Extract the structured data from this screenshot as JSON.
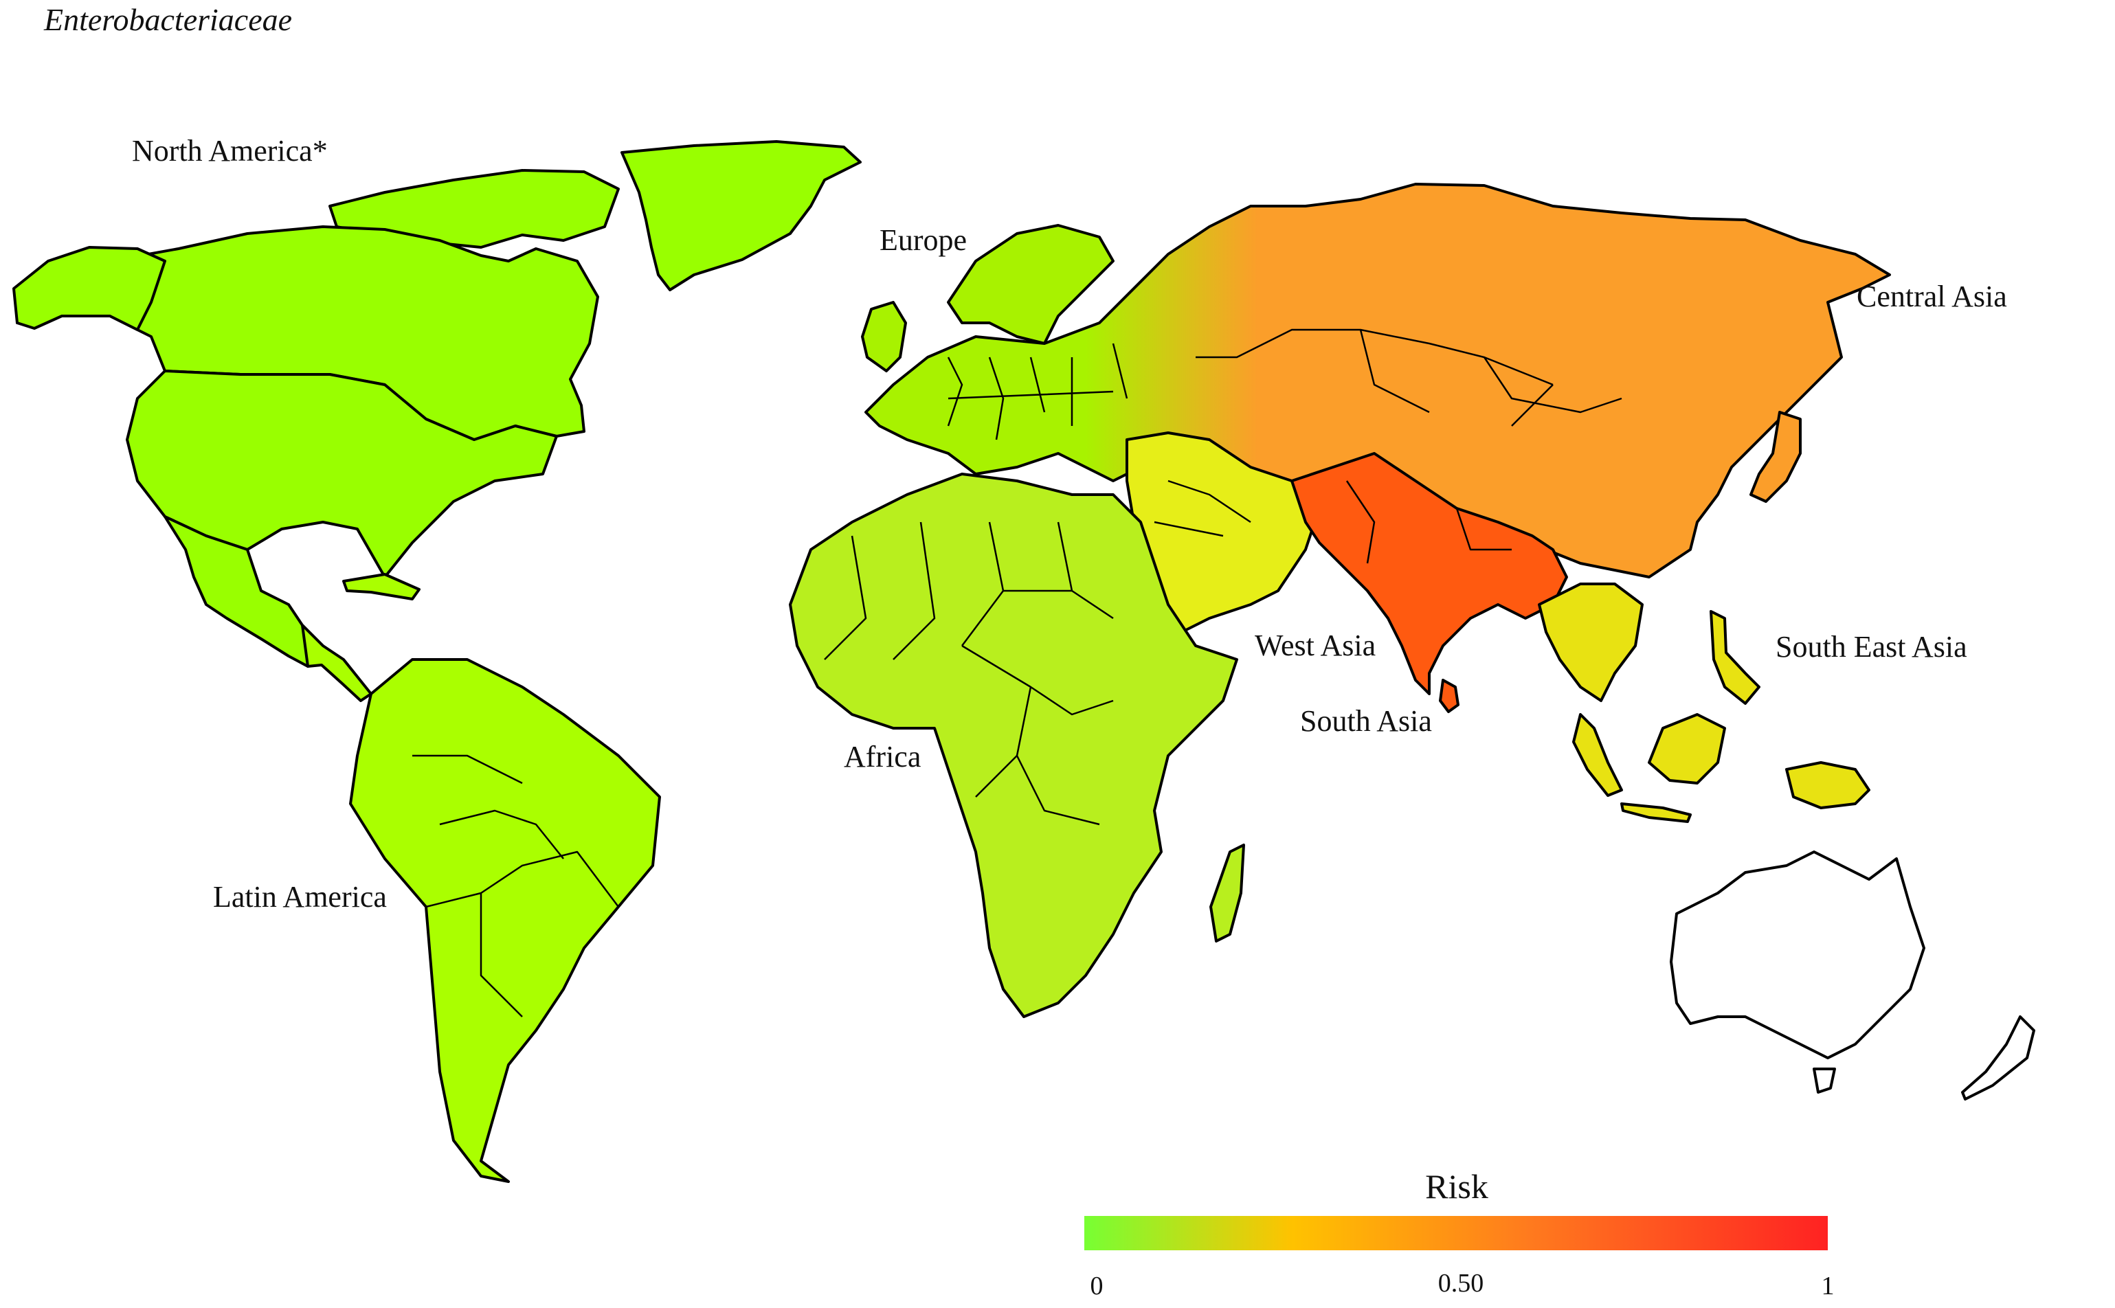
{
  "title": "Enterobacteriaceae",
  "regions": [
    {
      "id": "north-america",
      "label": "North America*",
      "risk": 0.05,
      "color": "#99ff00"
    },
    {
      "id": "latin-america",
      "label": "Latin America",
      "risk": 0.1,
      "color": "#aaff00"
    },
    {
      "id": "europe",
      "label": "Europe",
      "risk": 0.1,
      "color": "#a8f200"
    },
    {
      "id": "africa",
      "label": "Africa",
      "risk": 0.15,
      "color": "#b8ef1e"
    },
    {
      "id": "west-asia",
      "label": "West Asia",
      "risk": 0.3,
      "color": "#e6ee18"
    },
    {
      "id": "south-asia",
      "label": "South Asia",
      "risk": 0.8,
      "color": "#ff5a10"
    },
    {
      "id": "central-asia",
      "label": "Central Asia",
      "risk": 0.55,
      "color": "#fb9e2a"
    },
    {
      "id": "south-east-asia",
      "label": "South East Asia",
      "risk": 0.3,
      "color": "#e8e212"
    }
  ],
  "legend": {
    "title": "Risk",
    "colors": [
      "#77ff33",
      "#ffc200",
      "#ff7a1e",
      "#ff2222"
    ],
    "ticks": [
      "0",
      "0.50",
      "1"
    ]
  }
}
